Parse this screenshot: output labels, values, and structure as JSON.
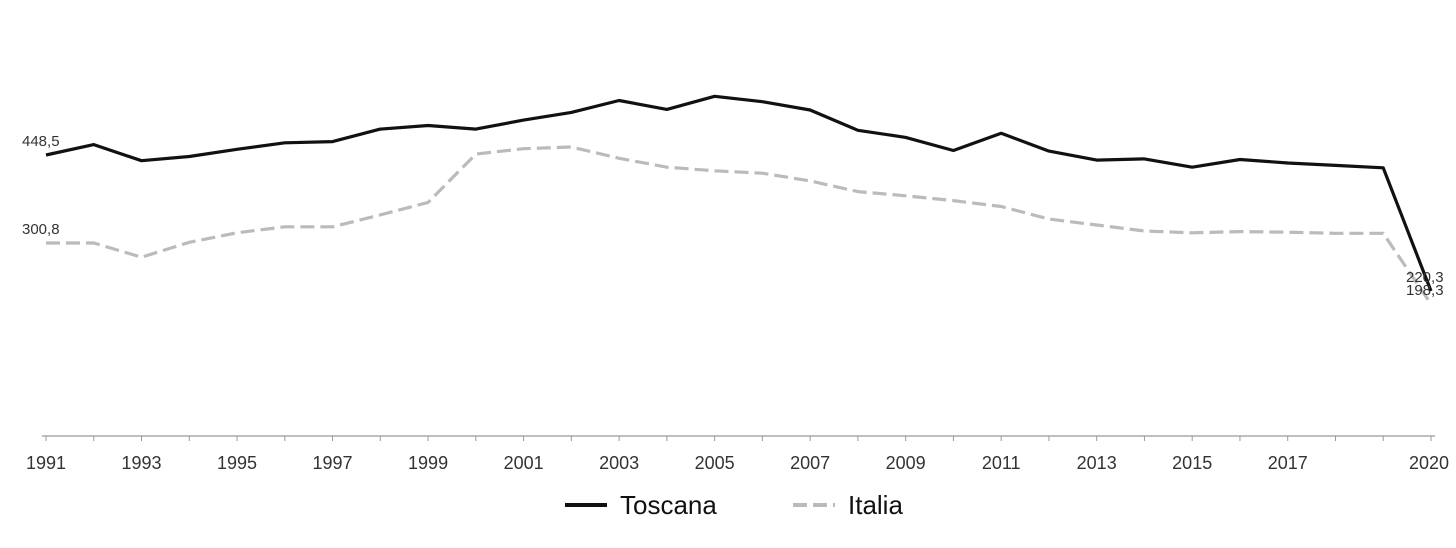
{
  "chart_data": {
    "type": "line",
    "x": [
      1991,
      1992,
      1993,
      1994,
      1995,
      1996,
      1997,
      1998,
      1999,
      2000,
      2001,
      2002,
      2003,
      2004,
      2005,
      2006,
      2007,
      2008,
      2009,
      2010,
      2011,
      2012,
      2013,
      2014,
      2015,
      2016,
      2017,
      2018,
      2019,
      2020
    ],
    "xticks": [
      "1991",
      "1993",
      "1995",
      "1997",
      "1999",
      "2001",
      "2003",
      "2005",
      "2007",
      "2009",
      "2011",
      "2013",
      "2015",
      "2017",
      "2020"
    ],
    "series": [
      {
        "name": "Toscana",
        "color": "#111111",
        "dash": "solid",
        "values": [
          448.5,
          466,
          439,
          446,
          458,
          469,
          471,
          492,
          498,
          492,
          507,
          520,
          540,
          525,
          547,
          538,
          524,
          490,
          478,
          456,
          485,
          455,
          440,
          442,
          428,
          441,
          435,
          431,
          427,
          220.3
        ],
        "first_label": "448,5",
        "last_label": "220,3"
      },
      {
        "name": "Italia",
        "color": "#bbbbbb",
        "dash": "dashed",
        "values": [
          300.8,
          300.8,
          277,
          302,
          318,
          328,
          328,
          348,
          369,
          450,
          459,
          462,
          443,
          428,
          422,
          418,
          405,
          387,
          380,
          372,
          362,
          341,
          331,
          321,
          318,
          320,
          319,
          317,
          317,
          198.3
        ],
        "first_label": "300,8",
        "last_label": "198,3"
      }
    ],
    "ylim": [
      0,
      600
    ],
    "grid": false,
    "legend_position": "bottom-center"
  }
}
